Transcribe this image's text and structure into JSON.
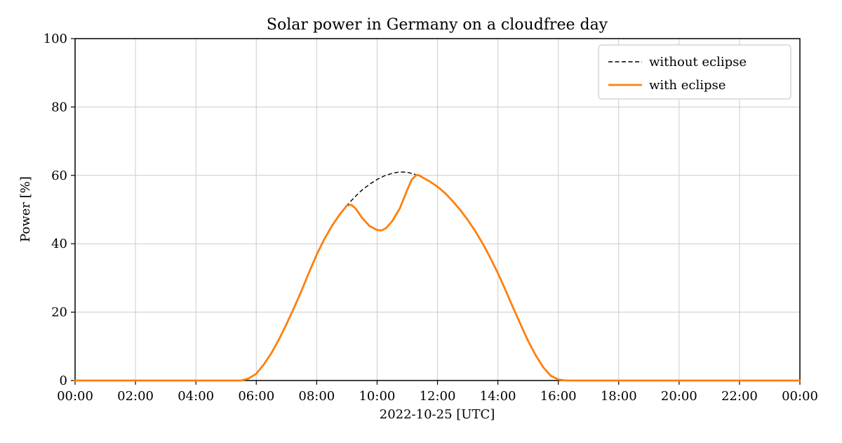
{
  "chart_data": {
    "type": "line",
    "title": "Solar power in Germany on a cloudfree day",
    "xlabel": "2022-10-25 [UTC]",
    "ylabel": "Power [%]",
    "xlim": [
      0,
      24
    ],
    "ylim": [
      0,
      100
    ],
    "grid": true,
    "legend_position": "upper right",
    "x_ticks": {
      "hours": [
        0,
        2,
        4,
        6,
        8,
        10,
        12,
        14,
        16,
        18,
        20,
        22,
        24
      ],
      "labels": [
        "00:00",
        "02:00",
        "04:00",
        "06:00",
        "08:00",
        "10:00",
        "12:00",
        "14:00",
        "16:00",
        "18:00",
        "20:00",
        "22:00",
        "00:00"
      ]
    },
    "y_ticks": [
      0,
      20,
      40,
      60,
      80,
      100
    ],
    "colors": {
      "without_eclipse": "#000000",
      "with_eclipse": "#ff7f0e",
      "grid": "#cccccc",
      "spine": "#000000",
      "legend_border": "#cccccc"
    },
    "series": [
      {
        "name": "without eclipse",
        "style": "dashed",
        "color": "#000000",
        "points": [
          [
            0,
            0
          ],
          [
            5.5,
            0
          ],
          [
            5.75,
            0.6
          ],
          [
            6,
            2
          ],
          [
            6.25,
            4.7
          ],
          [
            6.5,
            8
          ],
          [
            6.75,
            12
          ],
          [
            7,
            16.5
          ],
          [
            7.25,
            21.3
          ],
          [
            7.5,
            26.3
          ],
          [
            7.75,
            31.7
          ],
          [
            8,
            36.8
          ],
          [
            8.25,
            41.3
          ],
          [
            8.5,
            45.2
          ],
          [
            8.75,
            48.4
          ],
          [
            9,
            51.2
          ],
          [
            9.25,
            53.6
          ],
          [
            9.5,
            55.7
          ],
          [
            9.75,
            57.4
          ],
          [
            10,
            58.8
          ],
          [
            10.25,
            59.9
          ],
          [
            10.5,
            60.6
          ],
          [
            10.75,
            61
          ],
          [
            11,
            60.9
          ],
          [
            11.25,
            60.3
          ],
          [
            11.5,
            59.4
          ],
          [
            11.75,
            58.2
          ],
          [
            12,
            56.7
          ],
          [
            12.25,
            54.8
          ],
          [
            12.5,
            52.5
          ],
          [
            12.75,
            49.9
          ],
          [
            13,
            47
          ],
          [
            13.25,
            43.7
          ],
          [
            13.5,
            40
          ],
          [
            13.75,
            35.9
          ],
          [
            14,
            31.4
          ],
          [
            14.25,
            26.5
          ],
          [
            14.5,
            21.4
          ],
          [
            14.75,
            16.4
          ],
          [
            15,
            11.6
          ],
          [
            15.25,
            7.4
          ],
          [
            15.5,
            3.9
          ],
          [
            15.75,
            1.4
          ],
          [
            16,
            0.3
          ],
          [
            16.25,
            0
          ],
          [
            24,
            0
          ]
        ]
      },
      {
        "name": "with eclipse",
        "style": "solid",
        "color": "#ff7f0e",
        "points": [
          [
            0,
            0
          ],
          [
            5.5,
            0
          ],
          [
            5.75,
            0.6
          ],
          [
            6,
            2
          ],
          [
            6.25,
            4.7
          ],
          [
            6.5,
            8
          ],
          [
            6.75,
            12
          ],
          [
            7,
            16.5
          ],
          [
            7.25,
            21.3
          ],
          [
            7.5,
            26.3
          ],
          [
            7.75,
            31.7
          ],
          [
            8,
            36.8
          ],
          [
            8.25,
            41.3
          ],
          [
            8.5,
            45.2
          ],
          [
            8.75,
            48.4
          ],
          [
            9,
            51.2
          ],
          [
            9.15,
            51.4
          ],
          [
            9.3,
            50.2
          ],
          [
            9.5,
            47.6
          ],
          [
            9.75,
            45.2
          ],
          [
            10,
            44
          ],
          [
            10.15,
            43.9
          ],
          [
            10.3,
            44.6
          ],
          [
            10.5,
            46.6
          ],
          [
            10.75,
            50.3
          ],
          [
            11,
            55.8
          ],
          [
            11.15,
            58.8
          ],
          [
            11.3,
            60.1
          ],
          [
            11.4,
            60
          ],
          [
            11.5,
            59.4
          ],
          [
            11.75,
            58.2
          ],
          [
            12,
            56.7
          ],
          [
            12.25,
            54.8
          ],
          [
            12.5,
            52.5
          ],
          [
            12.75,
            49.9
          ],
          [
            13,
            47
          ],
          [
            13.25,
            43.7
          ],
          [
            13.5,
            40
          ],
          [
            13.75,
            35.9
          ],
          [
            14,
            31.4
          ],
          [
            14.25,
            26.5
          ],
          [
            14.5,
            21.4
          ],
          [
            14.75,
            16.4
          ],
          [
            15,
            11.6
          ],
          [
            15.25,
            7.4
          ],
          [
            15.5,
            3.9
          ],
          [
            15.75,
            1.4
          ],
          [
            16,
            0.3
          ],
          [
            16.25,
            0
          ],
          [
            24,
            0
          ]
        ]
      }
    ]
  }
}
